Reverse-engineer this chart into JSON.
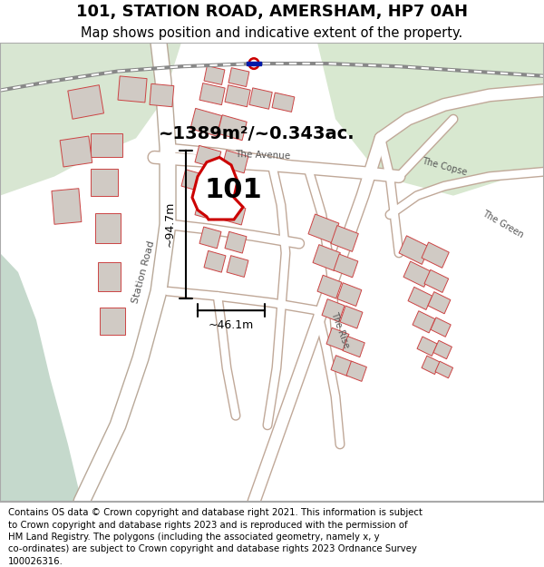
{
  "title": "101, STATION ROAD, AMERSHAM, HP7 0AH",
  "subtitle": "Map shows position and indicative extent of the property.",
  "footer": "Contains OS data © Crown copyright and database right 2021. This information is subject to Crown copyright and database rights 2023 and is reproduced with the permission of HM Land Registry. The polygons (including the associated geometry, namely x, y co-ordinates) are subject to Crown copyright and database rights 2023 Ordnance Survey 100026316.",
  "area_label": "~1389m²/~0.343ac.",
  "property_label": "101",
  "dim_h": "~46.1m",
  "dim_v": "~94.7m",
  "bg_color": "#f0ede8",
  "map_bg": "#f5f3f0",
  "water_color": "#c8ddd0",
  "road_color": "#ffffff",
  "building_color": "#d4cfc9",
  "property_fill": "#ffffff",
  "property_edge": "#cc0000",
  "grid_line_color": "#e8e0d0",
  "title_fontsize": 13,
  "subtitle_fontsize": 10.5,
  "footer_fontsize": 7.5
}
